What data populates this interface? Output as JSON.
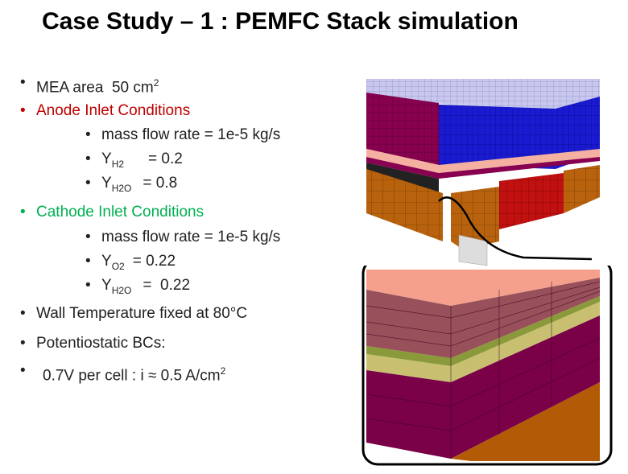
{
  "title": "Case Study – 1 : PEMFC Stack simulation",
  "bullets": [
    {
      "text": "MEA area  50 cm",
      "sup": "2"
    },
    {
      "text": "Anode Inlet Conditions",
      "items": [
        {
          "text": "mass flow rate = 1e-5 kg/s"
        },
        {
          "text": "Y",
          "sub": "H2",
          "after": "= 0.2"
        },
        {
          "text": "Y",
          "sub": "H2O",
          "after": "= 0.8"
        }
      ]
    },
    {
      "text": "Cathode Inlet Conditions",
      "items": [
        {
          "text": "mass flow rate = 1e-5 kg/s"
        },
        {
          "text": "Y",
          "sub": "O2",
          "after": "= 0.22"
        },
        {
          "text": "Y",
          "sub": "H2O",
          "after": "=  0.22"
        }
      ]
    },
    {
      "text": "Wall Temperature fixed at 80°C"
    },
    {
      "text": "Potentiostatic BCs:"
    },
    {
      "text": "0.7V per cell : i ≈ 0.5 A/cm",
      "sup": "2"
    }
  ]
}
